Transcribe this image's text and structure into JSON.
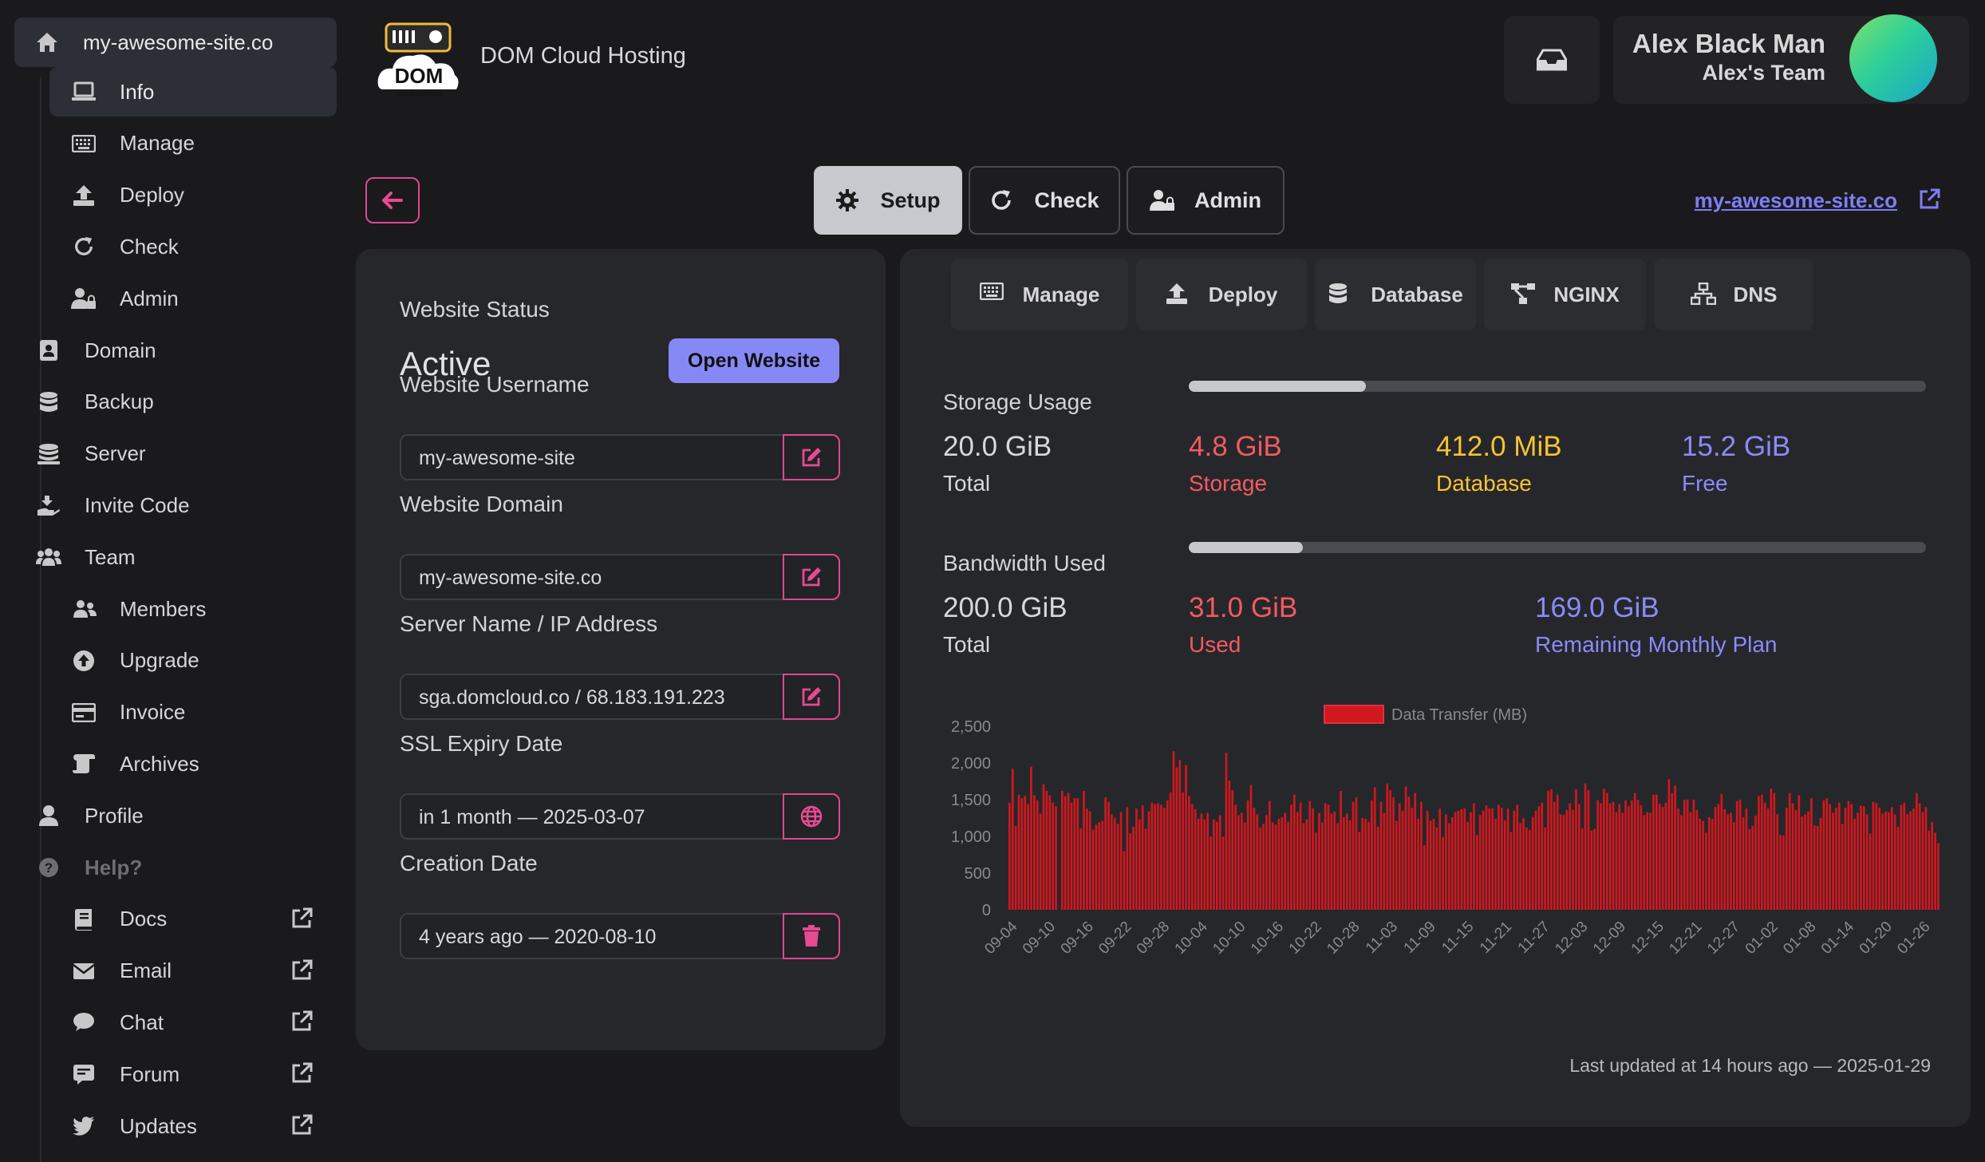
{
  "sidebar": {
    "site": {
      "label": "my-awesome-site.co",
      "icon": "home-icon"
    },
    "items": [
      {
        "label": "Info",
        "icon": "laptop-icon",
        "level": 2,
        "active": true
      },
      {
        "label": "Manage",
        "icon": "keyboard-icon",
        "level": 2
      },
      {
        "label": "Deploy",
        "icon": "upload-icon",
        "level": 2
      },
      {
        "label": "Check",
        "icon": "refresh-icon",
        "level": 2
      },
      {
        "label": "Admin",
        "icon": "user-lock-icon",
        "level": 2
      },
      {
        "label": "Domain",
        "icon": "address-book-icon",
        "level": 1
      },
      {
        "label": "Backup",
        "icon": "database-icon",
        "level": 1
      },
      {
        "label": "Server",
        "icon": "server-icon",
        "level": 1
      },
      {
        "label": "Invite Code",
        "icon": "hand-holding-icon",
        "level": 1
      },
      {
        "label": "Team",
        "icon": "users-icon",
        "level": 1
      },
      {
        "label": "Members",
        "icon": "user-group-icon",
        "level": 2
      },
      {
        "label": "Upgrade",
        "icon": "arrow-circle-up-icon",
        "level": 2
      },
      {
        "label": "Invoice",
        "icon": "credit-card-icon",
        "level": 2
      },
      {
        "label": "Archives",
        "icon": "scroll-icon",
        "level": 2
      },
      {
        "label": "Profile",
        "icon": "user-icon",
        "level": 1
      },
      {
        "label": "Help?",
        "icon": "question-circle-icon",
        "level": 1,
        "header": true
      },
      {
        "label": "Docs",
        "icon": "book-icon",
        "level": 2,
        "external": true
      },
      {
        "label": "Email",
        "icon": "envelope-icon",
        "level": 2,
        "external": true
      },
      {
        "label": "Chat",
        "icon": "comment-icon",
        "level": 2,
        "external": true
      },
      {
        "label": "Forum",
        "icon": "forum-icon",
        "level": 2,
        "external": true
      },
      {
        "label": "Updates",
        "icon": "twitter-icon",
        "level": 2,
        "external": true
      }
    ]
  },
  "header": {
    "brand": "DOM Cloud Hosting",
    "logo_text": "DOM",
    "logo_subtext": "CLOUD HOSTING",
    "user_name": "Alex Black Man",
    "user_team": "Alex's Team"
  },
  "toolbar": {
    "tabs": [
      {
        "label": "Setup",
        "icon": "gear-icon",
        "active": true
      },
      {
        "label": "Check",
        "icon": "refresh-icon"
      },
      {
        "label": "Admin",
        "icon": "user-lock-icon"
      }
    ],
    "site_link": "my-awesome-site.co"
  },
  "details": {
    "status_label": "Website Status",
    "status_value": "Active",
    "open_button": "Open Website",
    "fields": [
      {
        "label": "Website Username",
        "value": "my-awesome-site",
        "action_icon": "edit-icon"
      },
      {
        "label": "Website Domain",
        "value": "my-awesome-site.co",
        "action_icon": "edit-icon"
      },
      {
        "label": "Server Name / IP Address",
        "value": "sga.domcloud.co / 68.183.191.223",
        "action_icon": "edit-icon"
      },
      {
        "label": "SSL Expiry Date",
        "value": "in 1 month — 2025-03-07",
        "action_icon": "globe-icon"
      },
      {
        "label": "Creation Date",
        "value": "4 years ago — 2020-08-10",
        "action_icon": "trash-icon"
      }
    ]
  },
  "subtabs": [
    {
      "label": "Manage",
      "icon": "keyboard-icon"
    },
    {
      "label": "Deploy",
      "icon": "upload-icon"
    },
    {
      "label": "Database",
      "icon": "database-icon"
    },
    {
      "label": "NGINX",
      "icon": "network-icon"
    },
    {
      "label": "DNS",
      "icon": "sitemap-icon"
    }
  ],
  "storage": {
    "title": "Storage Usage",
    "used_fraction": 0.24,
    "total": {
      "value": "20.0 GiB",
      "label": "Total"
    },
    "storage": {
      "value": "4.8 GiB",
      "label": "Storage"
    },
    "database": {
      "value": "412.0 MiB",
      "label": "Database"
    },
    "free": {
      "value": "15.2 GiB",
      "label": "Free"
    }
  },
  "bandwidth": {
    "title": "Bandwidth Used",
    "used_fraction": 0.155,
    "total": {
      "value": "200.0 GiB",
      "label": "Total"
    },
    "used": {
      "value": "31.0 GiB",
      "label": "Used"
    },
    "remaining": {
      "value": "169.0 GiB",
      "label": "Remaining Monthly Plan"
    }
  },
  "chart_data": {
    "type": "bar",
    "series_name": "Data Transfer (MB)",
    "color": "#d0181e",
    "ylim": [
      0,
      2500
    ],
    "yticks": [
      "2,500",
      "2,000",
      "1,500",
      "1,000",
      "500",
      "0"
    ],
    "xtick_labels": [
      "09-04",
      "09-10",
      "09-16",
      "09-22",
      "09-28",
      "10-04",
      "10-10",
      "10-16",
      "10-22",
      "10-28",
      "11-03",
      "11-09",
      "11-15",
      "11-21",
      "11-27",
      "12-03",
      "12-09",
      "12-15",
      "12-21",
      "12-27",
      "01-02",
      "01-08",
      "01-14",
      "01-20",
      "01-26"
    ],
    "values": [
      1460,
      1920,
      1140,
      1570,
      1520,
      1550,
      1440,
      1950,
      1560,
      1490,
      1310,
      1710,
      1620,
      1560,
      1460,
      1410,
      0,
      1620,
      1550,
      1590,
      1460,
      1520,
      1520,
      1110,
      1620,
      1380,
      1340,
      1090,
      1160,
      1190,
      1210,
      1530,
      1470,
      1300,
      1250,
      1170,
      1330,
      800,
      1400,
      1040,
      1130,
      1380,
      1230,
      1420,
      1100,
      1340,
      1460,
      1440,
      1450,
      1430,
      1390,
      1490,
      1600,
      2160,
      1940,
      2040,
      1600,
      1970,
      1550,
      1440,
      1370,
      1240,
      1310,
      1230,
      1320,
      1000,
      1230,
      1200,
      1290,
      1000,
      2140,
      1760,
      1630,
      1430,
      1290,
      1320,
      1190,
      1490,
      1700,
      1390,
      1300,
      1120,
      1170,
      1290,
      1480,
      1190,
      1160,
      1240,
      1260,
      1320,
      1200,
      1430,
      1570,
      1330,
      1460,
      1180,
      1230,
      1480,
      1380,
      1050,
      1320,
      1190,
      1450,
      1430,
      1310,
      1340,
      1180,
      1620,
      1260,
      1310,
      1220,
      1470,
      1530,
      1060,
      1250,
      1240,
      1200,
      1490,
      1670,
      1130,
      1470,
      1320,
      1720,
      1630,
      1530,
      1210,
      1450,
      1350,
      1680,
      1540,
      1390,
      1590,
      1240,
      1470,
      880,
      1350,
      1210,
      1240,
      1120,
      1380,
      990,
      1300,
      1180,
      1260,
      1330,
      1350,
      1370,
      1380,
      1200,
      1330,
      1450,
      1020,
      1290,
      1350,
      1420,
      1380,
      1380,
      1240,
      1430,
      1390,
      1220,
      1380,
      1060,
      1350,
      1430,
      1180,
      1250,
      1120,
      1090,
      1260,
      1350,
      1410,
      1460,
      1120,
      1620,
      1640,
      1470,
      1570,
      1300,
      1290,
      1360,
      1450,
      1360,
      1640,
      1440,
      1110,
      1720,
      1630,
      1080,
      1100,
      1490,
      1450,
      1650,
      1590,
      1450,
      1470,
      1330,
      1440,
      1320,
      1490,
      1410,
      1490,
      1590,
      1500,
      1420,
      1290,
      1330,
      1320,
      1570,
      1570,
      1440,
      1400,
      1460,
      1780,
      1590,
      1690,
      1380,
      1290,
      1500,
      1500,
      1330,
      1500,
      1360,
      1240,
      1210,
      1050,
      1260,
      1240,
      1400,
      1440,
      1580,
      1370,
      1300,
      1320,
      1190,
      1480,
      1500,
      1260,
      1380,
      1100,
      1140,
      1280,
      1550,
      1570,
      1460,
      1380,
      1650,
      1590,
      1300,
      1020,
      1010,
      1390,
      1590,
      1450,
      1360,
      1560,
      1270,
      1300,
      1340,
      1520,
      1150,
      1140,
      1250,
      1490,
      1520,
      1440,
      1320,
      1390,
      1460,
      1170,
      1390,
      1480,
      1440,
      1240,
      1320,
      1420,
      1410,
      1300,
      1040,
      1470,
      1450,
      1390,
      1310,
      1340,
      1330,
      1400,
      1300,
      1130,
      1430,
      1460,
      1300,
      1340,
      1380,
      1590,
      1450,
      1330,
      1400,
      1080,
      1200,
      1050,
      910
    ]
  },
  "footer": {
    "updated": "Last updated at 14 hours ago — 2025-01-29"
  }
}
